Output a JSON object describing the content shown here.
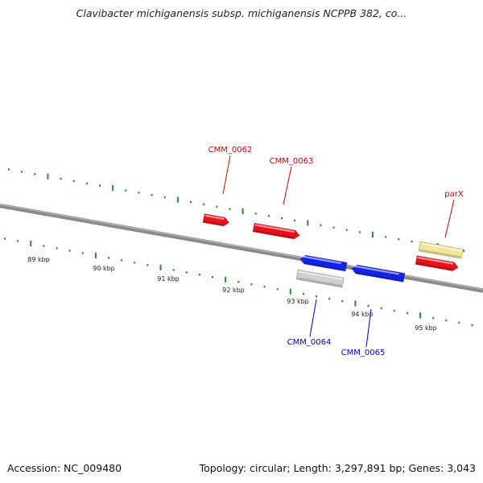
{
  "title": "Clavibacter michiganensis subsp. michiganensis NCPPB 382, co...",
  "footer": {
    "accession": "Accession: NC_009480",
    "stats": "Topology: circular; Length: 3,297,891 bp; Genes: 3,043"
  },
  "colors": {
    "backbone": "#7a7a7a",
    "tick": "#2d8a2d",
    "forward_gene": "#e8101a",
    "reverse_gene": "#1424e6",
    "pseudo_gene": "#cfcfcf",
    "feature_yellow": "#f2e49a",
    "label_forward": "#d40000",
    "label_reverse": "#0000c0"
  },
  "scale_labels": [
    "89 kbp",
    "90 kbp",
    "91 kbp",
    "92 kbp",
    "93 kbp",
    "94 kbp",
    "95 kbp"
  ],
  "genes": [
    {
      "name": "CMM_0062",
      "strand": "+",
      "kind": "cds",
      "labeled": true
    },
    {
      "name": "CMM_0063",
      "strand": "+",
      "kind": "cds",
      "labeled": true
    },
    {
      "name": "CMM_0064",
      "strand": "-",
      "kind": "cds",
      "labeled": true
    },
    {
      "name": "",
      "strand": "-",
      "kind": "pseudo",
      "labeled": false
    },
    {
      "name": "CMM_0065",
      "strand": "-",
      "kind": "cds",
      "labeled": true
    },
    {
      "name": "parX",
      "strand": "+",
      "kind": "gene",
      "labeled": true
    },
    {
      "name": "",
      "strand": "+",
      "kind": "cds",
      "labeled": false
    }
  ]
}
